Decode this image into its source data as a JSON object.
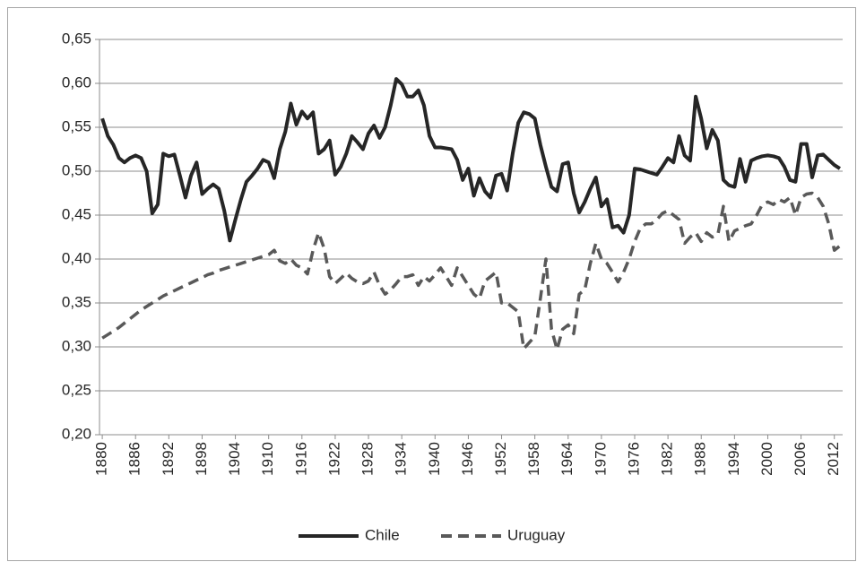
{
  "chart_data": {
    "type": "line",
    "x": [
      1880,
      1881,
      1882,
      1883,
      1884,
      1885,
      1886,
      1887,
      1888,
      1889,
      1890,
      1891,
      1892,
      1893,
      1894,
      1895,
      1896,
      1897,
      1898,
      1899,
      1900,
      1901,
      1902,
      1903,
      1904,
      1905,
      1906,
      1907,
      1908,
      1909,
      1910,
      1911,
      1912,
      1913,
      1914,
      1915,
      1916,
      1917,
      1918,
      1919,
      1920,
      1921,
      1922,
      1923,
      1924,
      1925,
      1926,
      1927,
      1928,
      1929,
      1930,
      1931,
      1932,
      1933,
      1934,
      1935,
      1936,
      1937,
      1938,
      1939,
      1940,
      1941,
      1942,
      1943,
      1944,
      1945,
      1946,
      1947,
      1948,
      1949,
      1950,
      1951,
      1952,
      1953,
      1954,
      1955,
      1956,
      1957,
      1958,
      1959,
      1960,
      1961,
      1962,
      1963,
      1964,
      1965,
      1966,
      1967,
      1968,
      1969,
      1970,
      1971,
      1972,
      1973,
      1974,
      1975,
      1976,
      1977,
      1978,
      1979,
      1980,
      1981,
      1982,
      1983,
      1984,
      1985,
      1986,
      1987,
      1988,
      1989,
      1990,
      1991,
      1992,
      1993,
      1994,
      1995,
      1996,
      1997,
      1998,
      1999,
      2000,
      2001,
      2002,
      2003,
      2004,
      2005,
      2006,
      2007,
      2008,
      2009,
      2010,
      2011,
      2012,
      2013
    ],
    "series": [
      {
        "name": "Chile",
        "color": "#262626",
        "line_style": "solid",
        "values": [
          0.56,
          0.54,
          0.53,
          0.515,
          0.51,
          0.515,
          0.518,
          0.515,
          0.5,
          0.452,
          0.462,
          0.52,
          0.517,
          0.519,
          0.495,
          0.47,
          0.495,
          0.51,
          0.474,
          0.48,
          0.485,
          0.48,
          0.455,
          0.421,
          0.445,
          0.468,
          0.488,
          0.495,
          0.503,
          0.513,
          0.51,
          0.492,
          0.525,
          0.545,
          0.577,
          0.553,
          0.568,
          0.56,
          0.567,
          0.52,
          0.525,
          0.535,
          0.496,
          0.505,
          0.52,
          0.54,
          0.533,
          0.525,
          0.543,
          0.552,
          0.538,
          0.55,
          0.575,
          0.605,
          0.599,
          0.585,
          0.585,
          0.592,
          0.575,
          0.54,
          0.527,
          0.527,
          0.526,
          0.525,
          0.513,
          0.49,
          0.503,
          0.472,
          0.492,
          0.477,
          0.47,
          0.495,
          0.497,
          0.478,
          0.52,
          0.555,
          0.567,
          0.565,
          0.56,
          0.53,
          0.505,
          0.482,
          0.477,
          0.508,
          0.51,
          0.475,
          0.453,
          0.465,
          0.48,
          0.493,
          0.46,
          0.468,
          0.436,
          0.438,
          0.43,
          0.45,
          0.503,
          0.502,
          0.5,
          0.498,
          0.496,
          0.505,
          0.515,
          0.51,
          0.54,
          0.518,
          0.512,
          0.585,
          0.56,
          0.526,
          0.547,
          0.535,
          0.49,
          0.484,
          0.482,
          0.514,
          0.488,
          0.512,
          0.515,
          0.517,
          0.518,
          0.517,
          0.515,
          0.505,
          0.49,
          0.488,
          0.531,
          0.531,
          0.493,
          0.518,
          0.519,
          0.513,
          0.507,
          0.503
        ]
      },
      {
        "name": "Uruguay",
        "color": "#595959",
        "line_style": "dashed",
        "values": [
          0.31,
          0.314,
          0.318,
          0.322,
          0.327,
          0.332,
          0.337,
          0.342,
          0.346,
          0.35,
          0.354,
          0.358,
          0.361,
          0.364,
          0.367,
          0.37,
          0.373,
          0.376,
          0.379,
          0.382,
          0.384,
          0.387,
          0.389,
          0.391,
          0.393,
          0.395,
          0.397,
          0.399,
          0.401,
          0.403,
          0.405,
          0.41,
          0.398,
          0.395,
          0.4,
          0.393,
          0.39,
          0.383,
          0.41,
          0.43,
          0.412,
          0.38,
          0.372,
          0.378,
          0.384,
          0.378,
          0.374,
          0.372,
          0.375,
          0.385,
          0.37,
          0.36,
          0.365,
          0.372,
          0.38,
          0.38,
          0.382,
          0.37,
          0.38,
          0.375,
          0.382,
          0.39,
          0.38,
          0.37,
          0.39,
          0.38,
          0.37,
          0.36,
          0.355,
          0.375,
          0.38,
          0.385,
          0.35,
          0.35,
          0.345,
          0.34,
          0.298,
          0.305,
          0.312,
          0.355,
          0.4,
          0.32,
          0.297,
          0.32,
          0.325,
          0.315,
          0.36,
          0.365,
          0.395,
          0.418,
          0.4,
          0.395,
          0.385,
          0.374,
          0.385,
          0.4,
          0.42,
          0.435,
          0.44,
          0.44,
          0.445,
          0.452,
          0.455,
          0.45,
          0.445,
          0.418,
          0.425,
          0.43,
          0.42,
          0.43,
          0.425,
          0.428,
          0.46,
          0.42,
          0.432,
          0.435,
          0.438,
          0.44,
          0.45,
          0.462,
          0.465,
          0.462,
          0.468,
          0.465,
          0.47,
          0.45,
          0.47,
          0.474,
          0.475,
          0.47,
          0.46,
          0.44,
          0.41,
          0.415
        ]
      }
    ],
    "xlim": [
      1879.5,
      2013.5
    ],
    "xticks": [
      1880,
      1886,
      1892,
      1898,
      1904,
      1910,
      1916,
      1922,
      1928,
      1934,
      1940,
      1946,
      1952,
      1958,
      1964,
      1970,
      1976,
      1982,
      1988,
      1994,
      2000,
      2006,
      2012
    ],
    "ylim": [
      0.2,
      0.65
    ],
    "yticks": [
      {
        "value": 0.2,
        "label": "0,20"
      },
      {
        "value": 0.25,
        "label": "0,25"
      },
      {
        "value": 0.3,
        "label": "0,30"
      },
      {
        "value": 0.35,
        "label": "0,35"
      },
      {
        "value": 0.4,
        "label": "0,40"
      },
      {
        "value": 0.45,
        "label": "0,45"
      },
      {
        "value": 0.5,
        "label": "0,50"
      },
      {
        "value": 0.55,
        "label": "0,55"
      },
      {
        "value": 0.6,
        "label": "0,60"
      },
      {
        "value": 0.65,
        "label": "0,65"
      }
    ],
    "grid": true,
    "legend": "bottom"
  }
}
